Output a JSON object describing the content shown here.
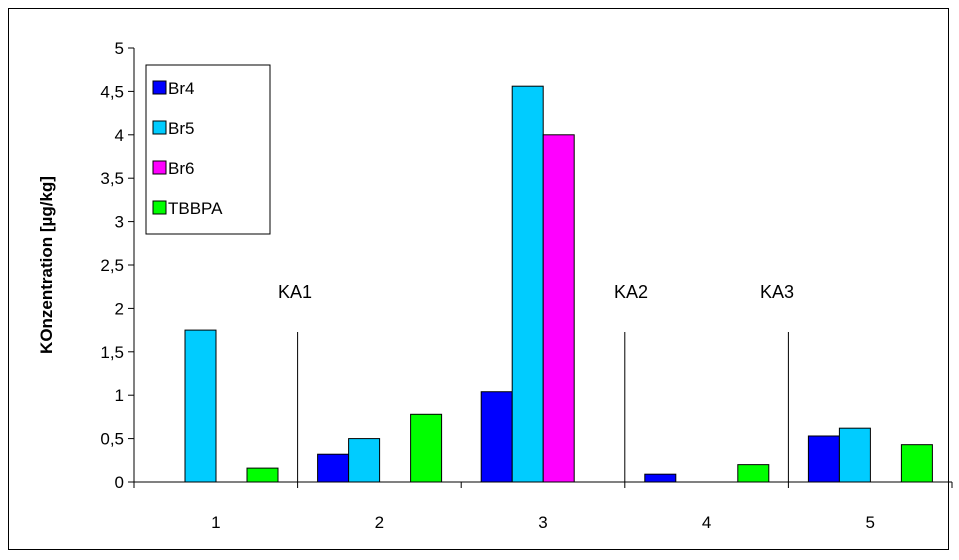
{
  "chart_data": {
    "type": "bar",
    "categories": [
      "1",
      "2",
      "3",
      "4",
      "5"
    ],
    "series": [
      {
        "name": "Br4",
        "values": [
          0,
          0.32,
          1.04,
          0.09,
          0.53
        ],
        "color": "#0000ff"
      },
      {
        "name": "Br5",
        "values": [
          1.75,
          0.5,
          4.56,
          0,
          0.62
        ],
        "color": "#00ccff"
      },
      {
        "name": "Br6",
        "values": [
          0,
          0,
          4.0,
          0,
          0
        ],
        "color": "#ff00ff"
      },
      {
        "name": "TBBPA",
        "values": [
          0.16,
          0.78,
          0,
          0.2,
          0.43
        ],
        "color": "#00ff00"
      }
    ],
    "ylabel": "KOnzentration [µg/kg]",
    "ylim": [
      0,
      5
    ],
    "yticks": [
      "0",
      "0,5",
      "1",
      "1,5",
      "2",
      "2,5",
      "3",
      "3,5",
      "4",
      "4,5",
      "5"
    ],
    "grid": false,
    "legend_position": "top-left",
    "annotations": [
      "KA1",
      "KA2",
      "KA3"
    ]
  }
}
